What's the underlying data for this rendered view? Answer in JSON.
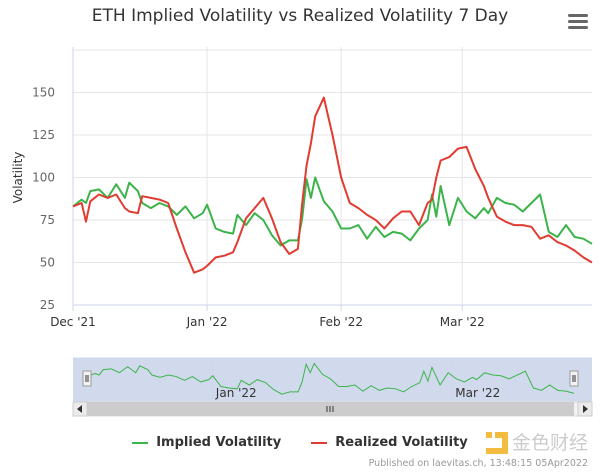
{
  "title": "ETH Implied Volatility vs Realized Volatility 7 Day",
  "menu_icon": "hamburger-menu-icon",
  "credits": "Published on laevitas.ch, 13:48:15 05Apr2022",
  "watermark": "金色财经",
  "colors": {
    "implied": "#3cb44b",
    "realized": "#e03c31",
    "grid": "#e6e6e6",
    "navigator_mask": "rgba(102,133,194,0.3)"
  },
  "chart_data": {
    "type": "line",
    "title": "ETH Implied Volatility vs Realized Volatility 7 Day",
    "xlabel": "",
    "ylabel": "Volatility",
    "xlim": [
      "2021-12-01",
      "2022-03-31"
    ],
    "ylim": [
      25,
      175
    ],
    "yticks": [
      25,
      50,
      75,
      100,
      125,
      150
    ],
    "xticks": [
      {
        "date": "2021-12-01",
        "label": "Dec '21"
      },
      {
        "date": "2022-01-01",
        "label": "Jan '22"
      },
      {
        "date": "2022-02-01",
        "label": "Feb '22"
      },
      {
        "date": "2022-03-01",
        "label": "Mar '22"
      }
    ],
    "navigator_ticks": [
      {
        "date": "2022-01-01",
        "label": "Jan '22"
      },
      {
        "date": "2022-03-01",
        "label": "Mar '22"
      }
    ],
    "grid": true,
    "legend": "bottom",
    "dates": [
      "2021-12-01",
      "2021-12-03",
      "2021-12-04",
      "2021-12-05",
      "2021-12-07",
      "2021-12-09",
      "2021-12-11",
      "2021-12-13",
      "2021-12-14",
      "2021-12-16",
      "2021-12-17",
      "2021-12-19",
      "2021-12-21",
      "2021-12-23",
      "2021-12-25",
      "2021-12-27",
      "2021-12-29",
      "2021-12-31",
      "2022-01-01",
      "2022-01-03",
      "2022-01-05",
      "2022-01-07",
      "2022-01-08",
      "2022-01-10",
      "2022-01-12",
      "2022-01-14",
      "2022-01-16",
      "2022-01-18",
      "2022-01-20",
      "2022-01-22",
      "2022-01-23",
      "2022-01-24",
      "2022-01-25",
      "2022-01-26",
      "2022-01-28",
      "2022-01-30",
      "2022-02-01",
      "2022-02-03",
      "2022-02-05",
      "2022-02-07",
      "2022-02-09",
      "2022-02-11",
      "2022-02-13",
      "2022-02-15",
      "2022-02-17",
      "2022-02-19",
      "2022-02-21",
      "2022-02-22",
      "2022-02-23",
      "2022-02-24",
      "2022-02-26",
      "2022-02-28",
      "2022-03-02",
      "2022-03-04",
      "2022-03-06",
      "2022-03-07",
      "2022-03-09",
      "2022-03-11",
      "2022-03-13",
      "2022-03-15",
      "2022-03-17",
      "2022-03-19",
      "2022-03-21",
      "2022-03-23",
      "2022-03-25",
      "2022-03-27",
      "2022-03-29",
      "2022-03-31"
    ],
    "series": [
      {
        "name": "Implied Volatility",
        "color": "#3cb44b",
        "values": [
          83,
          87,
          85,
          92,
          93,
          88,
          96,
          88,
          97,
          92,
          85,
          82,
          85,
          83,
          78,
          83,
          76,
          79,
          84,
          70,
          68,
          67,
          78,
          72,
          79,
          75,
          66,
          60,
          63,
          63,
          76,
          99,
          88,
          100,
          86,
          80,
          70,
          70,
          72,
          64,
          71,
          65,
          68,
          67,
          63,
          70,
          75,
          90,
          77,
          95,
          72,
          88,
          80,
          76,
          82,
          79,
          88,
          85,
          84,
          80,
          85,
          90,
          68,
          65,
          72,
          65,
          64,
          61
        ]
      },
      {
        "name": "Realized Volatility",
        "color": "#e03c31",
        "values": [
          83,
          85,
          74,
          86,
          90,
          88,
          90,
          82,
          80,
          79,
          89,
          88,
          87,
          85,
          70,
          56,
          44,
          46,
          48,
          53,
          54,
          56,
          62,
          76,
          82,
          88,
          76,
          62,
          55,
          58,
          85,
          107,
          120,
          136,
          147,
          125,
          100,
          85,
          82,
          78,
          75,
          70,
          76,
          80,
          80,
          72,
          85,
          87,
          100,
          110,
          112,
          117,
          118,
          105,
          95,
          88,
          77,
          74,
          72,
          72,
          71,
          64,
          66,
          62,
          60,
          57,
          53,
          50
        ]
      }
    ]
  }
}
